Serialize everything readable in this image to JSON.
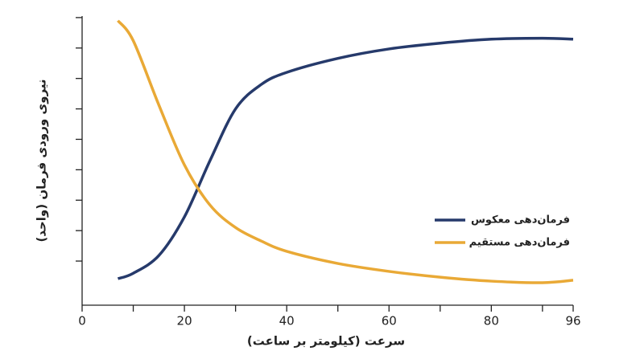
{
  "chart_data": {
    "type": "line",
    "x_label": "سرعت (کیلومتر بر ساعت)",
    "y_label": "نیروی ورودی فرمان (واحد)",
    "xlim": [
      0,
      96
    ],
    "xticks": [
      0,
      20,
      40,
      60,
      80,
      96
    ],
    "xminor_ticks": [
      10,
      30,
      50,
      70,
      90
    ],
    "ylim": [
      -0.45,
      9.05
    ],
    "yticks": [
      1,
      2,
      3,
      4,
      5,
      6,
      7,
      8,
      9
    ],
    "ytick_labels": false,
    "legend": "right",
    "series": [
      {
        "name": "فرمان‌دهی معکوس",
        "color": "#263a6b",
        "x": [
          7,
          10,
          15,
          20,
          25,
          30,
          35,
          40,
          50,
          60,
          70,
          80,
          90,
          96
        ],
        "values": [
          0.42,
          0.6,
          1.18,
          2.45,
          4.3,
          6.0,
          6.8,
          7.2,
          7.66,
          7.97,
          8.16,
          8.29,
          8.32,
          8.29
        ]
      },
      {
        "name": "فرمان‌دهی مستقیم",
        "color": "#e9a936",
        "x": [
          7,
          10,
          15,
          20,
          25,
          30,
          35,
          40,
          50,
          60,
          70,
          80,
          90,
          96
        ],
        "values": [
          8.9,
          8.24,
          6.13,
          4.16,
          2.84,
          2.1,
          1.66,
          1.32,
          0.92,
          0.66,
          0.47,
          0.34,
          0.29,
          0.37
        ]
      }
    ]
  }
}
